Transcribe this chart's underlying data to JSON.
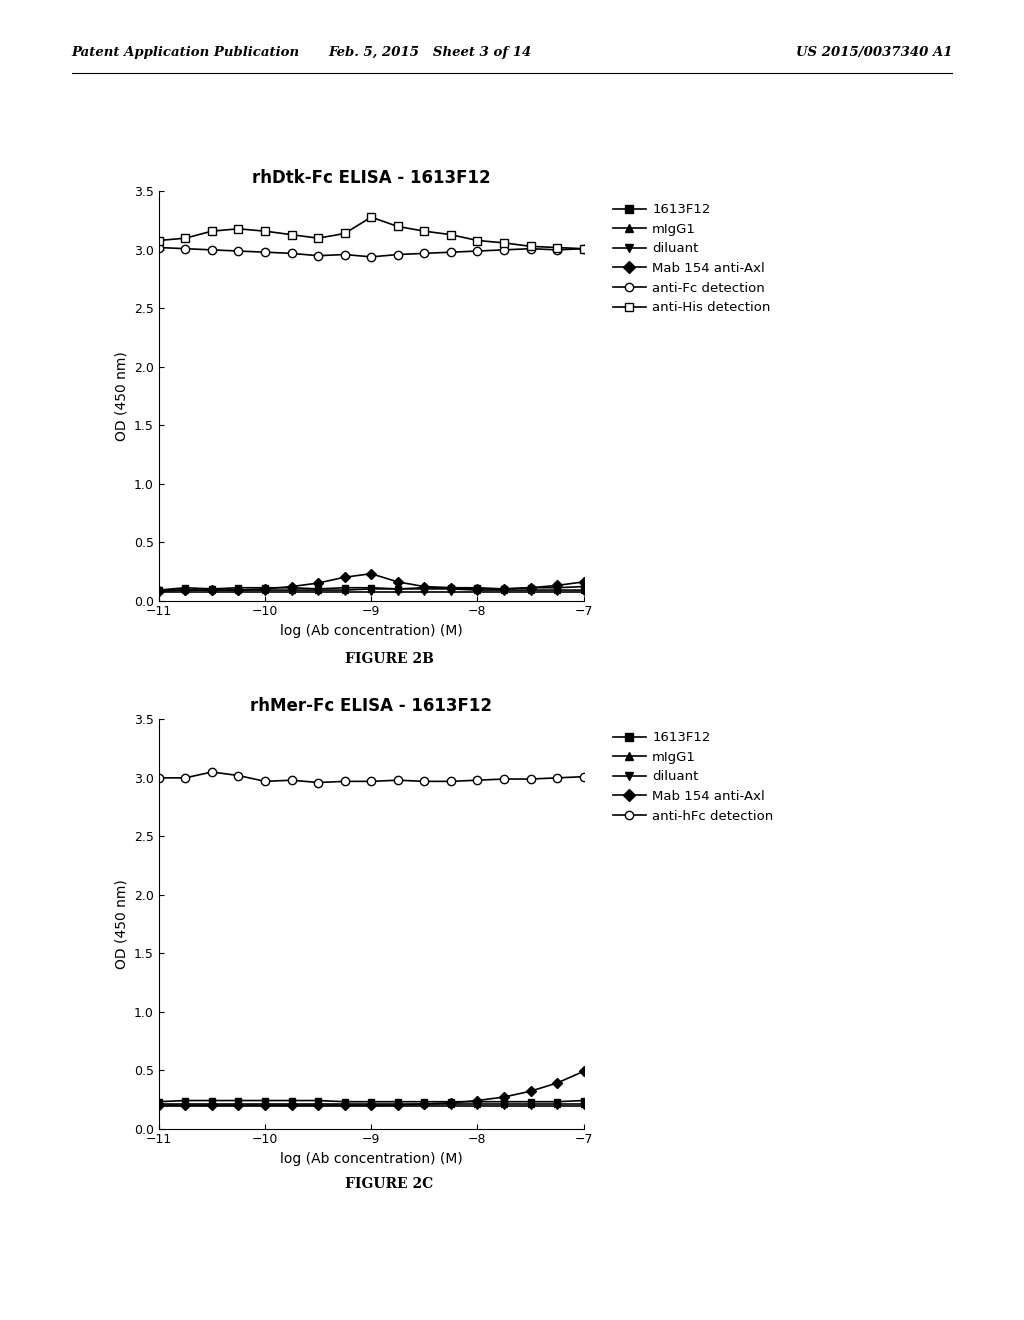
{
  "header_left": "Patent Application Publication",
  "header_mid": "Feb. 5, 2015   Sheet 3 of 14",
  "header_right": "US 2015/0037340 A1",
  "fig2b_title": "rhDtk-Fc ELISA - 1613F12",
  "fig2c_title": "rhMer-Fc ELISA - 1613F12",
  "fig2b_label": "FIGURE 2B",
  "fig2c_label": "FIGURE 2C",
  "xlabel": "log (Ab concentration) (M)",
  "ylabel": "OD (450 nm)",
  "xmin": -11,
  "xmax": -7,
  "ymin": 0.0,
  "ymax": 3.5,
  "xticks": [
    -11,
    -10,
    -9,
    -8,
    -7
  ],
  "yticks": [
    0.0,
    0.5,
    1.0,
    1.5,
    2.0,
    2.5,
    3.0,
    3.5
  ],
  "fig2b": {
    "x": [
      -11,
      -10.75,
      -10.5,
      -10.25,
      -10,
      -9.75,
      -9.5,
      -9.25,
      -9,
      -8.75,
      -8.5,
      -8.25,
      -8,
      -7.75,
      -7.5,
      -7.25,
      -7
    ],
    "series_1613F12": [
      0.09,
      0.11,
      0.1,
      0.11,
      0.11,
      0.11,
      0.1,
      0.11,
      0.11,
      0.1,
      0.11,
      0.11,
      0.11,
      0.1,
      0.11,
      0.11,
      0.12
    ],
    "series_mIgG1": [
      0.09,
      0.09,
      0.09,
      0.09,
      0.09,
      0.09,
      0.09,
      0.09,
      0.1,
      0.1,
      0.1,
      0.1,
      0.09,
      0.09,
      0.09,
      0.09,
      0.09
    ],
    "series_diluant": [
      0.07,
      0.07,
      0.07,
      0.07,
      0.07,
      0.07,
      0.07,
      0.07,
      0.07,
      0.07,
      0.07,
      0.07,
      0.07,
      0.07,
      0.07,
      0.07,
      0.07
    ],
    "series_mab154": [
      0.08,
      0.09,
      0.09,
      0.09,
      0.1,
      0.12,
      0.15,
      0.2,
      0.23,
      0.16,
      0.12,
      0.11,
      0.1,
      0.1,
      0.11,
      0.13,
      0.16
    ],
    "series_antiFc": [
      3.02,
      3.01,
      3.0,
      2.99,
      2.98,
      2.97,
      2.95,
      2.96,
      2.94,
      2.96,
      2.97,
      2.98,
      2.99,
      3.0,
      3.01,
      3.0,
      3.01
    ],
    "series_antiHis": [
      3.08,
      3.1,
      3.16,
      3.18,
      3.16,
      3.13,
      3.1,
      3.14,
      3.28,
      3.2,
      3.16,
      3.13,
      3.08,
      3.06,
      3.03,
      3.02,
      3.01
    ]
  },
  "fig2c": {
    "x": [
      -11,
      -10.75,
      -10.5,
      -10.25,
      -10,
      -9.75,
      -9.5,
      -9.25,
      -9,
      -8.75,
      -8.5,
      -8.25,
      -8,
      -7.75,
      -7.5,
      -7.25,
      -7
    ],
    "series_1613F12": [
      0.23,
      0.24,
      0.24,
      0.24,
      0.24,
      0.24,
      0.24,
      0.23,
      0.23,
      0.23,
      0.23,
      0.23,
      0.23,
      0.23,
      0.23,
      0.23,
      0.24
    ],
    "series_mIgG1": [
      0.21,
      0.21,
      0.21,
      0.21,
      0.21,
      0.21,
      0.21,
      0.21,
      0.21,
      0.21,
      0.21,
      0.21,
      0.21,
      0.21,
      0.21,
      0.21,
      0.21
    ],
    "series_diluant": [
      0.19,
      0.19,
      0.19,
      0.19,
      0.19,
      0.19,
      0.19,
      0.19,
      0.19,
      0.19,
      0.19,
      0.19,
      0.19,
      0.19,
      0.19,
      0.19,
      0.19
    ],
    "series_mab154": [
      0.2,
      0.2,
      0.2,
      0.2,
      0.2,
      0.2,
      0.2,
      0.2,
      0.2,
      0.2,
      0.21,
      0.22,
      0.24,
      0.27,
      0.32,
      0.39,
      0.49
    ],
    "series_antihFc": [
      3.0,
      3.0,
      3.05,
      3.02,
      2.97,
      2.98,
      2.96,
      2.97,
      2.97,
      2.98,
      2.97,
      2.97,
      2.98,
      2.99,
      2.99,
      3.0,
      3.01
    ]
  }
}
